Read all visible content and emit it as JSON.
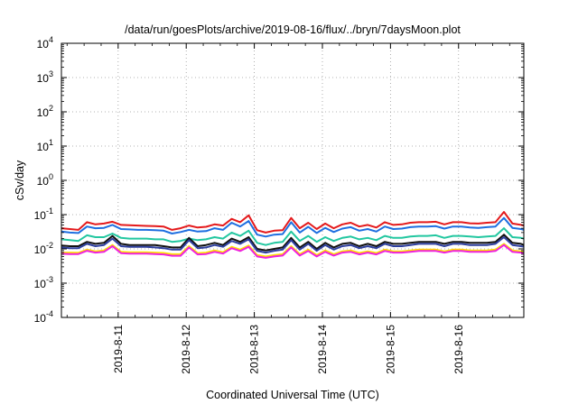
{
  "chart_data": {
    "type": "line",
    "title": "/data/run/goesPlots/archive/2019-08-16/flux/../bryn/7daysMoon.plot",
    "xlabel": "Coordinated Universal Time (UTC)",
    "ylabel": "cSv/day",
    "yscale": "log",
    "ylim": [
      0.0001,
      10000
    ],
    "y_ticks": [
      {
        "base": "10",
        "exp": "-4"
      },
      {
        "base": "10",
        "exp": "-3"
      },
      {
        "base": "10",
        "exp": "-2"
      },
      {
        "base": "10",
        "exp": "-1"
      },
      {
        "base": "10",
        "exp": "0"
      },
      {
        "base": "10",
        "exp": "1"
      },
      {
        "base": "10",
        "exp": "2"
      },
      {
        "base": "10",
        "exp": "3"
      },
      {
        "base": "10",
        "exp": "4"
      }
    ],
    "x_range": [
      "2019-08-10 04:00",
      "2019-08-16 23:00"
    ],
    "x_tick_labels": [
      "2019-8-11",
      "2019-8-12",
      "2019-8-13",
      "2019-8-14",
      "2019-8-15",
      "2019-8-16"
    ],
    "grid": true,
    "x": [
      "2019-08-10 04:00",
      "2019-08-10 07:00",
      "2019-08-10 10:00",
      "2019-08-10 13:00",
      "2019-08-10 16:00",
      "2019-08-10 19:00",
      "2019-08-10 22:00",
      "2019-08-11 01:00",
      "2019-08-11 04:00",
      "2019-08-11 07:00",
      "2019-08-11 10:00",
      "2019-08-11 13:00",
      "2019-08-11 16:00",
      "2019-08-11 19:00",
      "2019-08-11 22:00",
      "2019-08-12 01:00",
      "2019-08-12 04:00",
      "2019-08-12 07:00",
      "2019-08-12 10:00",
      "2019-08-12 13:00",
      "2019-08-12 16:00",
      "2019-08-12 19:00",
      "2019-08-12 22:00",
      "2019-08-13 01:00",
      "2019-08-13 04:00",
      "2019-08-13 07:00",
      "2019-08-13 10:00",
      "2019-08-13 13:00",
      "2019-08-13 16:00",
      "2019-08-13 19:00",
      "2019-08-13 22:00",
      "2019-08-14 01:00",
      "2019-08-14 04:00",
      "2019-08-14 07:00",
      "2019-08-14 10:00",
      "2019-08-14 13:00",
      "2019-08-14 16:00",
      "2019-08-14 19:00",
      "2019-08-14 22:00",
      "2019-08-15 01:00",
      "2019-08-15 04:00",
      "2019-08-15 07:00",
      "2019-08-15 10:00",
      "2019-08-15 13:00",
      "2019-08-15 16:00",
      "2019-08-15 19:00",
      "2019-08-15 22:00",
      "2019-08-16 01:00",
      "2019-08-16 04:00",
      "2019-08-16 07:00",
      "2019-08-16 10:00",
      "2019-08-16 13:00",
      "2019-08-16 16:00",
      "2019-08-16 19:00",
      "2019-08-16 22:00",
      "2019-08-16 23:00"
    ],
    "series": [
      {
        "color": "#e41a1c",
        "values": [
          0.04,
          0.038,
          0.036,
          0.06,
          0.052,
          0.055,
          0.062,
          0.05,
          0.049,
          0.048,
          0.047,
          0.046,
          0.045,
          0.036,
          0.04,
          0.048,
          0.042,
          0.044,
          0.052,
          0.048,
          0.075,
          0.06,
          0.095,
          0.035,
          0.03,
          0.034,
          0.035,
          0.08,
          0.04,
          0.058,
          0.038,
          0.055,
          0.04,
          0.052,
          0.058,
          0.045,
          0.05,
          0.042,
          0.06,
          0.05,
          0.052,
          0.058,
          0.06,
          0.06,
          0.062,
          0.052,
          0.06,
          0.06,
          0.056,
          0.055,
          0.058,
          0.06,
          0.12,
          0.055,
          0.05,
          0.048
        ]
      },
      {
        "color": "#1f6fe0",
        "values": [
          0.032,
          0.03,
          0.029,
          0.045,
          0.04,
          0.041,
          0.05,
          0.038,
          0.037,
          0.036,
          0.036,
          0.035,
          0.034,
          0.028,
          0.031,
          0.036,
          0.032,
          0.033,
          0.04,
          0.036,
          0.058,
          0.045,
          0.065,
          0.026,
          0.023,
          0.026,
          0.027,
          0.06,
          0.03,
          0.044,
          0.029,
          0.041,
          0.031,
          0.039,
          0.043,
          0.034,
          0.038,
          0.032,
          0.045,
          0.038,
          0.039,
          0.043,
          0.045,
          0.045,
          0.046,
          0.039,
          0.045,
          0.045,
          0.042,
          0.041,
          0.043,
          0.045,
          0.08,
          0.041,
          0.038,
          0.036
        ]
      },
      {
        "color": "#22c7a0",
        "values": [
          0.019,
          0.018,
          0.017,
          0.025,
          0.022,
          0.022,
          0.028,
          0.021,
          0.02,
          0.02,
          0.02,
          0.019,
          0.019,
          0.016,
          0.017,
          0.02,
          0.018,
          0.019,
          0.022,
          0.02,
          0.03,
          0.024,
          0.034,
          0.015,
          0.013,
          0.015,
          0.016,
          0.032,
          0.017,
          0.024,
          0.016,
          0.022,
          0.017,
          0.021,
          0.023,
          0.019,
          0.021,
          0.018,
          0.024,
          0.021,
          0.021,
          0.023,
          0.024,
          0.024,
          0.025,
          0.021,
          0.024,
          0.024,
          0.023,
          0.022,
          0.023,
          0.024,
          0.04,
          0.022,
          0.021,
          0.02
        ]
      },
      {
        "color": "#111111",
        "values": [
          0.0125,
          0.012,
          0.012,
          0.016,
          0.014,
          0.015,
          0.024,
          0.014,
          0.013,
          0.013,
          0.013,
          0.013,
          0.012,
          0.011,
          0.011,
          0.021,
          0.012,
          0.013,
          0.015,
          0.013,
          0.02,
          0.016,
          0.022,
          0.01,
          0.009,
          0.01,
          0.011,
          0.021,
          0.011,
          0.016,
          0.01,
          0.015,
          0.011,
          0.014,
          0.015,
          0.012,
          0.014,
          0.012,
          0.016,
          0.014,
          0.014,
          0.015,
          0.016,
          0.016,
          0.016,
          0.014,
          0.016,
          0.016,
          0.015,
          0.015,
          0.015,
          0.016,
          0.026,
          0.015,
          0.014,
          0.013
        ]
      },
      {
        "color": "#2e3f9e",
        "values": [
          0.011,
          0.0105,
          0.0105,
          0.014,
          0.012,
          0.013,
          0.02,
          0.012,
          0.0115,
          0.0115,
          0.0115,
          0.011,
          0.0105,
          0.0095,
          0.0095,
          0.018,
          0.0105,
          0.011,
          0.013,
          0.0115,
          0.017,
          0.014,
          0.019,
          0.0088,
          0.0078,
          0.0088,
          0.0095,
          0.018,
          0.0095,
          0.014,
          0.0088,
          0.013,
          0.0095,
          0.012,
          0.013,
          0.0105,
          0.012,
          0.0105,
          0.014,
          0.012,
          0.012,
          0.013,
          0.014,
          0.014,
          0.014,
          0.012,
          0.014,
          0.014,
          0.013,
          0.013,
          0.013,
          0.014,
          0.022,
          0.013,
          0.012,
          0.0115
        ]
      },
      {
        "color": "#ffe000",
        "values": [
          0.0078,
          0.0078,
          0.0077,
          0.0095,
          0.0085,
          0.009,
          0.013,
          0.0082,
          0.008,
          0.008,
          0.008,
          0.0078,
          0.0076,
          0.007,
          0.007,
          0.012,
          0.0075,
          0.0078,
          0.009,
          0.008,
          0.0115,
          0.0095,
          0.0125,
          0.0066,
          0.006,
          0.0066,
          0.007,
          0.012,
          0.007,
          0.0095,
          0.0066,
          0.009,
          0.007,
          0.0085,
          0.009,
          0.0076,
          0.0085,
          0.0076,
          0.0095,
          0.0085,
          0.0085,
          0.009,
          0.0095,
          0.0095,
          0.0095,
          0.0085,
          0.0095,
          0.0095,
          0.009,
          0.009,
          0.009,
          0.0095,
          0.014,
          0.009,
          0.0085,
          0.008
        ]
      },
      {
        "color": "#ee22dd",
        "values": [
          0.0072,
          0.0071,
          0.0071,
          0.0088,
          0.0078,
          0.0082,
          0.012,
          0.0075,
          0.0073,
          0.0073,
          0.0073,
          0.0071,
          0.0069,
          0.0063,
          0.0063,
          0.011,
          0.0069,
          0.0071,
          0.0082,
          0.0073,
          0.0105,
          0.0087,
          0.0115,
          0.006,
          0.0055,
          0.006,
          0.0064,
          0.011,
          0.0064,
          0.0087,
          0.006,
          0.0082,
          0.0064,
          0.0078,
          0.0082,
          0.0069,
          0.0078,
          0.0069,
          0.0087,
          0.0078,
          0.0078,
          0.0082,
          0.0087,
          0.0087,
          0.0087,
          0.0078,
          0.0087,
          0.0087,
          0.0082,
          0.0082,
          0.0082,
          0.0087,
          0.013,
          0.0082,
          0.0078,
          0.0073
        ]
      }
    ]
  }
}
